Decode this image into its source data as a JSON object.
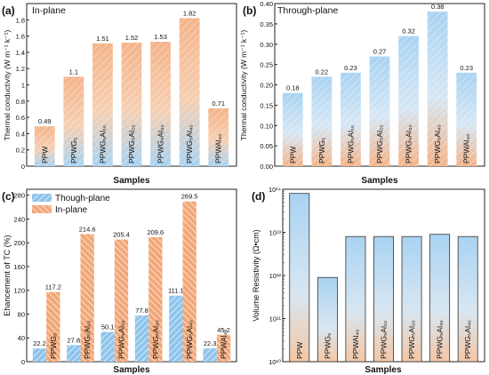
{
  "chart_data": [
    {
      "panel": "(a)",
      "type": "bar",
      "title": "In-plane",
      "ylabel": "Thermal conductivity (W m⁻¹ k⁻¹)",
      "xlabel": "Samples",
      "ylim": [
        0,
        2.0
      ],
      "yticks": [
        0,
        0.2,
        0.4,
        0.6,
        0.8,
        1.0,
        1.2,
        1.4,
        1.6,
        1.8
      ],
      "categories": [
        "PPW",
        "PPWG₅",
        "PPWG₅Al₁₀",
        "PPWG₅Al₂₀",
        "PPWG₅Al₃₀",
        "PPWG₅Al₄₀",
        "PPWAl₄₀"
      ],
      "values": [
        0.49,
        1.1,
        1.51,
        1.52,
        1.53,
        1.82,
        0.71
      ],
      "data_labels": [
        "0.49",
        "1.1",
        "1.51",
        "1.52",
        "1.53",
        "1.82",
        "0.71"
      ],
      "colors": {
        "top": "#f4b48a",
        "bottom": "#a9d3f2"
      }
    },
    {
      "panel": "(b)",
      "type": "bar",
      "title": "Through-plane",
      "ylabel": "Thermal conductivity (W m⁻¹ k⁻¹)",
      "xlabel": "Samples",
      "ylim": [
        0,
        0.4
      ],
      "yticks": [
        0,
        0.05,
        0.1,
        0.15,
        0.2,
        0.25,
        0.3,
        0.35,
        0.4
      ],
      "categories": [
        "PPW",
        "PPWG₅",
        "PPWG₅Al₁₀",
        "PPWG₅Al₂₀",
        "PPWG₅Al₃₀",
        "PPWG₅Al₄₀",
        "PPWAl₄₀"
      ],
      "values": [
        0.18,
        0.22,
        0.23,
        0.27,
        0.32,
        0.38,
        0.23
      ],
      "data_labels": [
        "0.18",
        "0.22",
        "0.23",
        "0.27",
        "0.32",
        "0.38",
        "0.23"
      ],
      "colors": {
        "top": "#a9d3f2",
        "bottom": "#f4b48a"
      }
    },
    {
      "panel": "(c)",
      "type": "bar",
      "ylabel": "Ehancement of TC (%)",
      "xlabel": "Samples",
      "ylim": [
        0,
        290
      ],
      "yticks": [
        0,
        40,
        80,
        120,
        160,
        200,
        240,
        280
      ],
      "categories": [
        "PPWG₅",
        "PPWG₅Al₁₀",
        "PPWG₅Al₂₀",
        "PPWG₅Al₃₀",
        "PPWG₅Al₄₀",
        "PPWAl₄₀"
      ],
      "series": [
        {
          "name": "Though-plane",
          "values": [
            22.2,
            27.8,
            50.1,
            77.8,
            111.1,
            22.3
          ],
          "color": "#8ec4ec"
        },
        {
          "name": "In-plane",
          "values": [
            117.2,
            214.6,
            205.4,
            209.6,
            269.5,
            45.2
          ],
          "color": "#f2a778"
        }
      ],
      "legend": "top-left"
    },
    {
      "panel": "(d)",
      "type": "bar",
      "scale": "log",
      "ylabel": "Volume Resistivity (Ω•cm)",
      "xlabel": "Samples",
      "ylim": [
        "10¹⁰",
        "10¹⁴"
      ],
      "yticks": [
        "10¹⁰",
        "10¹¹",
        "10¹²",
        "10¹³",
        "10¹⁴"
      ],
      "ytick_exponents": [
        10,
        11,
        12,
        13,
        14
      ],
      "categories": [
        "PPW",
        "PPWG₅",
        "PPWAl₄₀",
        "PPWG₅Al₁₀",
        "PPWG₅Al₂₀",
        "PPWG₅Al₃₀",
        "PPWG₅Al₄₀"
      ],
      "values": [
        80000000000000.0,
        900000000000.0,
        8000000000000.0,
        8000000000000.0,
        8000000000000.0,
        9000000000000.0,
        8000000000000.0
      ],
      "colors": {
        "top": "#a9d3f2",
        "bottom": "#f4c7a5"
      }
    }
  ]
}
